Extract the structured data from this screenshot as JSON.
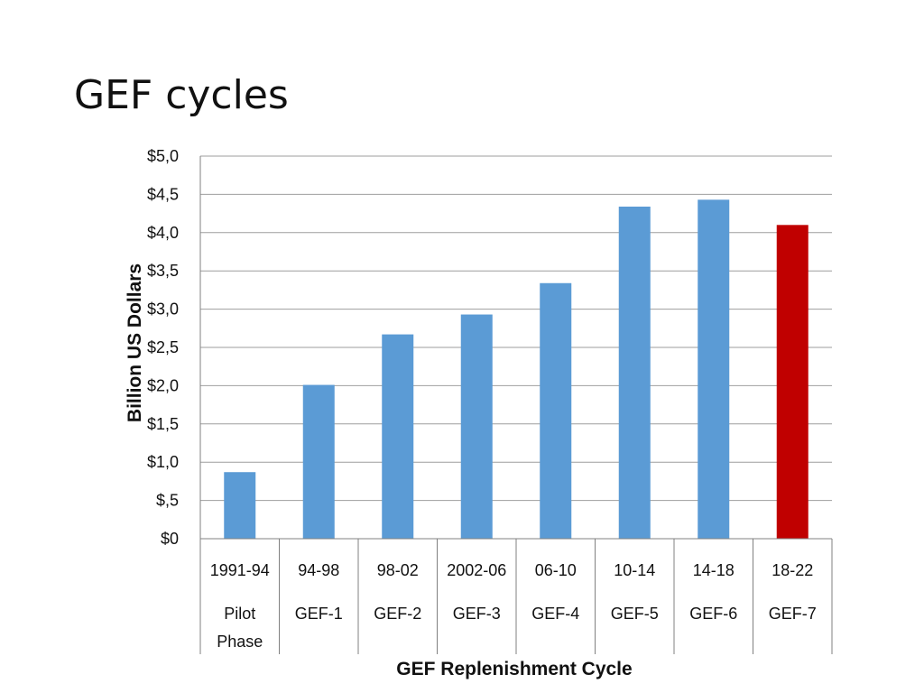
{
  "slide": {
    "title": "GEF cycles"
  },
  "colors": {
    "bar_default": "#5b9bd5",
    "bar_highlight": "#c00000",
    "grid": "#9e9e9e",
    "axis": "#808080"
  },
  "chart_data": {
    "type": "bar",
    "categories": [
      "1991-94",
      "94-98",
      "98-02",
      "2002-06",
      "06-10",
      "10-14",
      "14-18",
      "18-22"
    ],
    "subcategories": [
      "Pilot Phase",
      "GEF-1",
      "GEF-2",
      "GEF-3",
      "GEF-4",
      "GEF-5",
      "GEF-6",
      "GEF-7"
    ],
    "values": [
      0.87,
      2.01,
      2.67,
      2.93,
      3.34,
      4.34,
      4.43,
      4.1
    ],
    "highlight_index": 7,
    "ylim": [
      0,
      5
    ],
    "ytick_values": [
      0,
      0.5,
      1,
      1.5,
      2,
      2.5,
      3,
      3.5,
      4,
      4.5,
      5
    ],
    "ytick_labels": [
      "$0",
      "$,5",
      "$1,0",
      "$1,5",
      "$2,0",
      "$2,5",
      "$3,0",
      "$3,5",
      "$4,0",
      "$4,5",
      "$5,0"
    ],
    "xlabel": "GEF Replenishment Cycle",
    "ylabel": "Billion US Dollars",
    "grid": true,
    "legend": "none"
  }
}
